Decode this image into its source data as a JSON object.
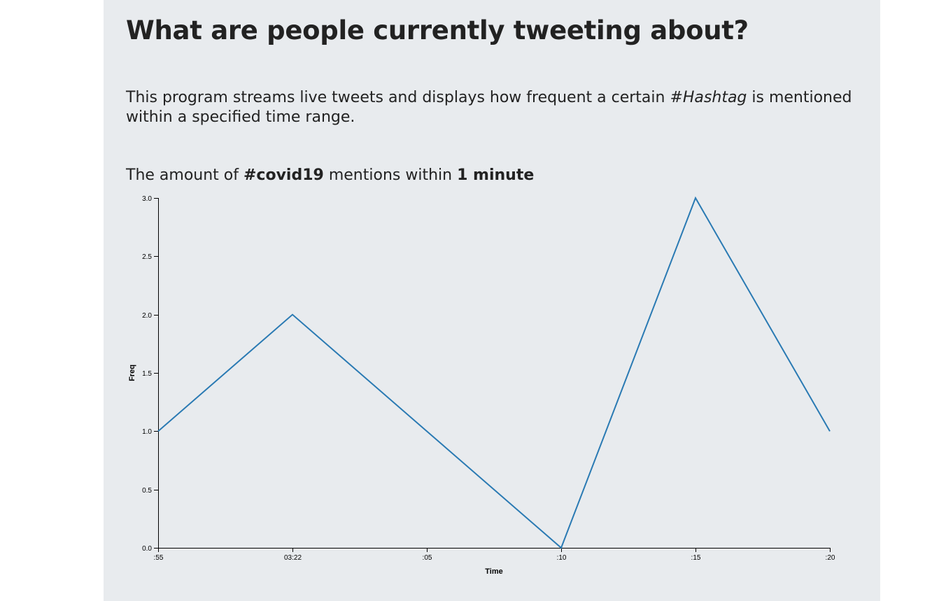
{
  "header": {
    "title": "What are people currently tweeting about?"
  },
  "intro": {
    "text_before": "This program streams live tweets and displays how frequent a certain ",
    "hashtag_word": "#Hashtag",
    "text_after": " is mentioned within a specified time range."
  },
  "chart_heading": {
    "prefix": "The amount of ",
    "hashtag": "#covid19",
    "middle": " mentions within ",
    "range": "1 minute"
  },
  "colors": {
    "panel_background": "#e8ebee",
    "line": "#2a7ab3",
    "text": "#222222"
  },
  "chart_data": {
    "type": "line",
    "title": "",
    "xlabel": "Time",
    "ylabel": "Freq",
    "x_tick_labels": [
      ":55",
      "03:22",
      ":05",
      ":10",
      ":15",
      ":20"
    ],
    "x": [
      "03:21:55",
      "03:22:00",
      "03:22:05",
      "03:22:10",
      "03:22:15",
      "03:22:20"
    ],
    "values": [
      1,
      2,
      1,
      0,
      3,
      1
    ],
    "y_ticks": [
      "0.0",
      "0.5",
      "1.0",
      "1.5",
      "2.0",
      "2.5",
      "3.0"
    ],
    "ylim": [
      0,
      3
    ],
    "grid": false,
    "legend": "none"
  }
}
